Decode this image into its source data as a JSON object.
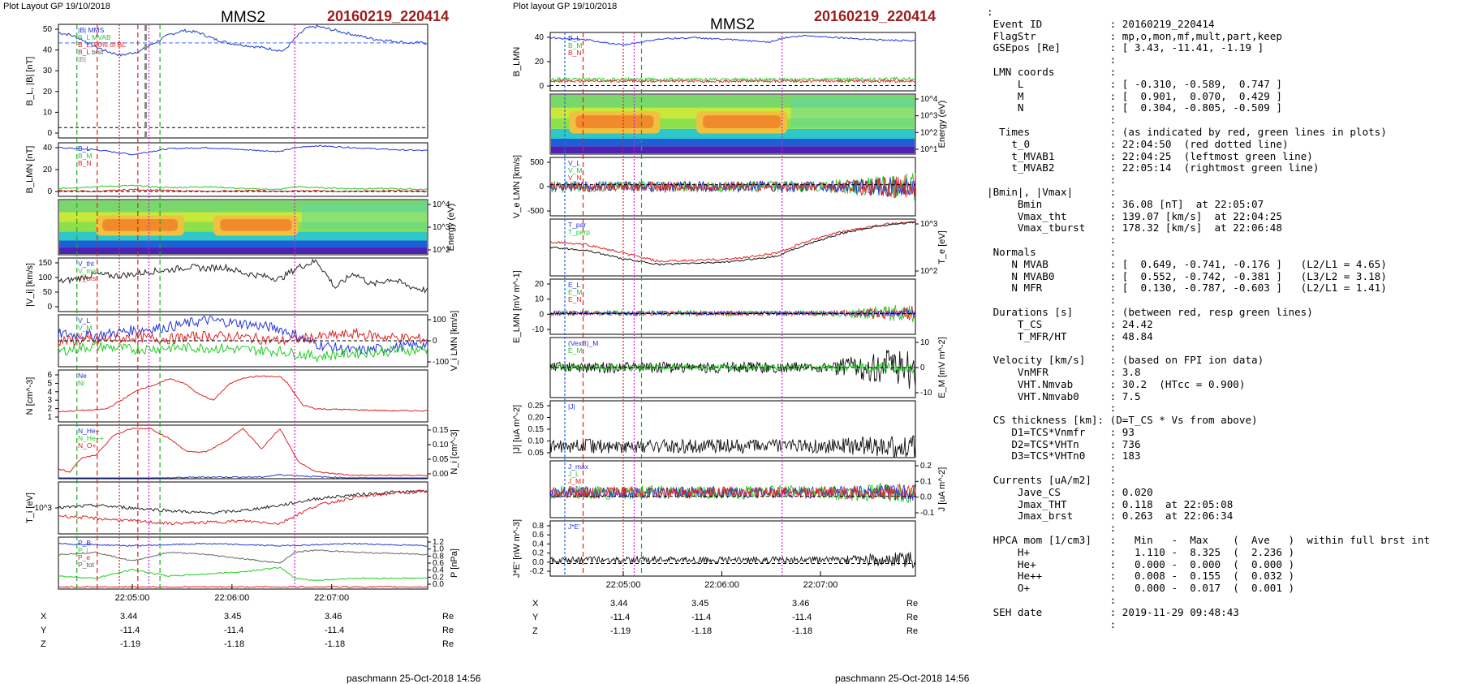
{
  "left_figure": {
    "header": "Plot Layout GP 19/10/2018",
    "title": "MMS2",
    "event": "20160219_220414",
    "footer": "paschmann 25-Oct-2018 14:56",
    "time_ticks": [
      "22:05:00",
      "22:06:00",
      "22:07:00"
    ],
    "pos_rows": [
      {
        "label": "X",
        "vals": [
          "3.44",
          "3.45",
          "3.46"
        ],
        "unit": "Re"
      },
      {
        "label": "Y",
        "vals": [
          "-11.4",
          "-11.4",
          "-11.4"
        ],
        "unit": "Re"
      },
      {
        "label": "Z",
        "vals": [
          "-1.19",
          "-1.18",
          "-1.18"
        ],
        "unit": "Re"
      }
    ]
  },
  "right_figure": {
    "header": "Plot layout GP 19/10/2018",
    "title": "MMS2",
    "event": "20160219_220414",
    "footer": "paschmann 25-Oct-2018 14:56",
    "time_ticks": [
      "22:05:00",
      "22:06:00",
      "22:07:00"
    ],
    "pos_rows": [
      {
        "label": "X",
        "vals": [
          "3.44",
          "3.45",
          "3.46"
        ],
        "unit": "Re"
      },
      {
        "label": "Y",
        "vals": [
          "-11.4",
          "-11.4",
          "-11.4"
        ],
        "unit": "Re"
      },
      {
        "label": "Z",
        "vals": [
          "-1.19",
          "-1.18",
          "-1.18"
        ],
        "unit": "Re"
      }
    ]
  },
  "info_lines": [
    ":",
    " Event ID           : 20160219_220414",
    " FlagStr            : mp,o,mon,mf,mult,part,keep",
    " GSEpos [Re]        : [ 3.43, -11.41, -1.19 ]",
    "                    :",
    " LMN coords         :",
    "     L              : [ -0.310, -0.589,  0.747 ]",
    "     M              : [  0.901,  0.070,  0.429 ]",
    "     N              : [  0.304, -0.805, -0.509 ]",
    "                    :",
    "  Times             : (as indicated by red, green lines in plots)",
    "    t_0             : 22:04:50  (red dotted line)",
    "    t_MVAB1         : 22:04:25  (leftmost green line)",
    "    t_MVAB2         : 22:05:14  (rightmost green line)",
    "                    :",
    "|Bmin|, |Vmax|      :",
    "     Bmin           : 36.08 [nT]  at 22:05:07",
    "     Vmax_tht       : 139.07 [km/s]  at 22:04:25",
    "     Vmax_tburst    : 178.32 [km/s]  at 22:06:48",
    "                    :",
    " Normals            :",
    "    N MVAB          : [  0.649, -0.741, -0.176 ]   (L2/L1 = 4.65)",
    "    N MVAB0         : [  0.552, -0.742, -0.381 ]   (L3/L2 = 3.18)",
    "    N MFR           : [  0.130, -0.787, -0.603 ]   (L2/L1 = 1.41)",
    "                    :",
    " Durations [s]      : (between red, resp green lines)",
    "     T_CS           : 24.42",
    "     T_MFR/HT       : 48.84",
    "                    :",
    " Velocity [km/s]    : (based on FPI ion data)",
    "     VnMFR          : 3.8",
    "     VHT.Nmvab      : 30.2  (HTcc = 0.900)",
    "     VHT.Nmvab0     : 7.5",
    "                    :",
    " CS thickness [km]: (D=T_CS * Vs from above)",
    "    D1=TCS*Vnmfr    : 93",
    "    D2=TCS*VHTn     : 736",
    "    D3=TCS*VHTn0    : 183",
    "                    :",
    " Currents [uA/m2]   :",
    "     Jave_CS        : 0.020",
    "     Jmax_THT       : 0.118  at 22:05:08",
    "     Jmax_brst      : 0.263  at 22:06:34",
    "                    :",
    " HPCA mom [1/cm3]   :   Min   -  Max    (  Ave   )  within full brst int",
    "     H+             :   1.110 -  8.325  (  2.236 )",
    "     He+            :   0.000 -  0.000  (  0.000 )",
    "     He++           :   0.008 -  0.155  (  0.032 )",
    "     O+             :   0.000 -  0.017  (  0.001 )",
    "                    :",
    " SEH date           : 2019-11-29 09:48:43",
    "                    :"
  ],
  "chart_data": [
    {
      "type": "line",
      "title": "MMS2",
      "panel": "B",
      "ylabel": "B_L, |B| [nT]",
      "ylim": [
        -5,
        50
      ],
      "yticks": [
        "0",
        "10",
        "20",
        "30",
        "40",
        "50"
      ],
      "legend": [
        "|B| MMS",
        "B_L MVAB",
        "B_L; 50% of BL",
        "B_L brst",
        "|B|"
      ],
      "series": [
        {
          "name": "|B|",
          "color": "#1a3cc8",
          "x": [
            0,
            0.03,
            0.06,
            0.09,
            0.13,
            0.17,
            0.22,
            0.26,
            0.3,
            0.34,
            0.38,
            0.42,
            0.46,
            0.5,
            0.54,
            0.58,
            0.61,
            0.64,
            0.67,
            0.7,
            0.75,
            0.8,
            0.85,
            0.9,
            0.95,
            1.0
          ],
          "y": [
            46,
            45,
            43,
            40,
            37,
            35,
            37,
            41,
            45,
            47,
            46,
            43,
            41,
            40,
            39,
            38,
            37,
            43,
            48,
            49,
            47,
            45,
            43,
            42,
            41,
            41
          ]
        }
      ],
      "ref_lines": [
        {
          "y": 41,
          "color": "#4466ff",
          "dashed": true
        }
      ]
    },
    {
      "type": "line",
      "panel": "B_LMN",
      "ylabel": "B_LMN [nT]",
      "ylim": [
        -5,
        50
      ],
      "yticks": [
        "0",
        "20",
        "40"
      ],
      "legend": [
        "B_L",
        "B_M",
        "B_N"
      ],
      "series": [
        {
          "name": "B_L",
          "color": "#2233dd",
          "x": [
            0,
            0.1,
            0.2,
            0.3,
            0.4,
            0.5,
            0.6,
            0.64,
            0.7,
            0.8,
            0.9,
            1.0
          ],
          "y": [
            45,
            43,
            38,
            44,
            45,
            43,
            41,
            45,
            47,
            45,
            43,
            42
          ]
        },
        {
          "name": "B_M",
          "color": "#22cc22",
          "x": [
            0,
            0.1,
            0.2,
            0.3,
            0.4,
            0.5,
            0.6,
            0.64,
            0.7,
            0.8,
            0.9,
            1.0
          ],
          "y": [
            3,
            5,
            6,
            4,
            5,
            3,
            2,
            5,
            4,
            3,
            3,
            2
          ]
        },
        {
          "name": "B_N",
          "color": "#dd2222",
          "x": [
            0,
            0.1,
            0.2,
            0.3,
            0.4,
            0.5,
            0.6,
            0.7,
            0.8,
            0.9,
            1.0
          ],
          "y": [
            1,
            0,
            2,
            1,
            0,
            1,
            0,
            1,
            0,
            1,
            0
          ]
        }
      ]
    },
    {
      "type": "heatmap",
      "panel": "ion energy spectrogram",
      "ylabel": "Energy (eV)",
      "yticks": [
        "10^2",
        "10^3",
        "10^4"
      ]
    },
    {
      "type": "line",
      "panel": "|V_i|",
      "ylabel": "|V_i| [km/s]",
      "ylim": [
        0,
        180
      ],
      "yticks": [
        "0",
        "50",
        "100",
        "150"
      ],
      "legend": [
        "V_tht",
        "V_max",
        "V_brst"
      ],
      "series": [
        {
          "name": "|V_i|",
          "color": "#222222",
          "x": [
            0,
            0.05,
            0.1,
            0.15,
            0.2,
            0.25,
            0.3,
            0.35,
            0.4,
            0.45,
            0.5,
            0.55,
            0.6,
            0.65,
            0.7,
            0.75,
            0.8,
            0.85,
            0.9,
            0.95,
            1.0
          ],
          "y": [
            100,
            110,
            125,
            120,
            125,
            135,
            140,
            150,
            145,
            150,
            130,
            120,
            110,
            150,
            170,
            80,
            130,
            90,
            110,
            85,
            70
          ]
        }
      ]
    },
    {
      "type": "line",
      "panel": "V_i LMN",
      "ylabel": "V_i LMN [km/s]",
      "ylim": [
        -150,
        150
      ],
      "yticks": [
        "-100",
        "0",
        "100"
      ],
      "legend": [
        "V_L",
        "V_M",
        "V_N"
      ],
      "series": [
        {
          "name": "V_L",
          "color": "#2233dd",
          "x": [
            0,
            0.1,
            0.2,
            0.3,
            0.4,
            0.5,
            0.6,
            0.7,
            0.8,
            0.9,
            1.0
          ],
          "y": [
            40,
            30,
            60,
            80,
            120,
            100,
            70,
            -20,
            -60,
            -40,
            -20
          ]
        },
        {
          "name": "V_M",
          "color": "#22cc22",
          "x": [
            0,
            0.1,
            0.2,
            0.3,
            0.4,
            0.5,
            0.6,
            0.7,
            0.8,
            0.9,
            1.0
          ],
          "y": [
            -60,
            -30,
            -50,
            -40,
            -40,
            -50,
            -60,
            -90,
            -70,
            -60,
            -50
          ]
        },
        {
          "name": "V_N",
          "color": "#dd2222",
          "x": [
            0,
            0.1,
            0.2,
            0.3,
            0.4,
            0.5,
            0.6,
            0.7,
            0.8,
            0.9,
            1.0
          ],
          "y": [
            0,
            0,
            20,
            10,
            30,
            20,
            0,
            20,
            40,
            20,
            10
          ]
        }
      ]
    },
    {
      "type": "line",
      "panel": "N",
      "ylabel": "N [cm^-3]",
      "ylim": [
        0,
        6
      ],
      "yticks": [
        "1",
        "2",
        "3",
        "4",
        "5",
        "6"
      ],
      "legend": [
        "Ne",
        "Ni"
      ],
      "series": [
        {
          "name": "Ne",
          "color": "#dd2222",
          "x": [
            0,
            0.05,
            0.1,
            0.13,
            0.17,
            0.22,
            0.27,
            0.3,
            0.34,
            0.38,
            0.42,
            0.46,
            0.5,
            0.55,
            0.6,
            0.62,
            0.66,
            0.7,
            0.8,
            0.9,
            1.0
          ],
          "y": [
            1.2,
            1.3,
            1.4,
            1.5,
            2.5,
            3.8,
            4.4,
            5.0,
            4.5,
            3.2,
            2.5,
            4.3,
            5.1,
            5.3,
            5.2,
            4.5,
            2.0,
            1.5,
            1.4,
            1.3,
            1.3
          ]
        }
      ]
    },
    {
      "type": "line",
      "panel": "N_i species",
      "ylabel": "N_i [cm^-3]",
      "ylim": [
        0,
        0.16
      ],
      "yticks": [
        "0.00",
        "0.05",
        "0.10",
        "0.15"
      ],
      "legend": [
        "N_He+",
        "N_He++",
        "N_O+"
      ],
      "series": [
        {
          "name": "He++",
          "color": "#dd2222",
          "x": [
            0,
            0.03,
            0.06,
            0.1,
            0.15,
            0.2,
            0.25,
            0.3,
            0.35,
            0.4,
            0.45,
            0.5,
            0.55,
            0.6,
            0.65,
            0.7,
            0.8,
            0.9,
            1.0
          ],
          "y": [
            0.03,
            0.02,
            0.06,
            0.07,
            0.13,
            0.15,
            0.15,
            0.12,
            0.08,
            0.08,
            0.11,
            0.15,
            0.09,
            0.15,
            0.05,
            0.02,
            0.01,
            0.01,
            0.01
          ]
        },
        {
          "name": "O+",
          "color": "#2233dd",
          "x": [
            0,
            0.2,
            0.4,
            0.55,
            0.6,
            0.7,
            0.8,
            1.0
          ],
          "y": [
            0.0,
            0.0,
            0.005,
            0.005,
            0.012,
            0.006,
            0.002,
            0.0
          ]
        }
      ]
    },
    {
      "type": "line",
      "panel": "T_i",
      "ylabel": "T_i [eV]",
      "yticks": [
        "10^3"
      ],
      "series": [
        {
          "name": "T_par",
          "color": "#222222",
          "x": [
            0,
            0.1,
            0.2,
            0.3,
            0.4,
            0.5,
            0.6,
            0.64,
            0.7,
            0.8,
            0.9,
            1.0
          ],
          "y": [
            0.5,
            0.55,
            0.5,
            0.45,
            0.4,
            0.45,
            0.55,
            0.6,
            0.68,
            0.75,
            0.8,
            0.82
          ]
        },
        {
          "name": "T_perp",
          "color": "#dd2222",
          "x": [
            0,
            0.1,
            0.2,
            0.3,
            0.4,
            0.5,
            0.6,
            0.64,
            0.7,
            0.8,
            0.9,
            1.0
          ],
          "y": [
            0.35,
            0.3,
            0.25,
            0.2,
            0.22,
            0.25,
            0.2,
            0.35,
            0.55,
            0.7,
            0.78,
            0.82
          ]
        }
      ]
    },
    {
      "type": "line",
      "panel": "P",
      "ylabel": "P [nPa]",
      "ylim": [
        0,
        1.2
      ],
      "yticks": [
        "0.0",
        "0.2",
        "0.4",
        "0.6",
        "0.8",
        "1.0",
        "1.2"
      ],
      "legend": [
        "P_B",
        "P_i",
        "P_e",
        "P_tot"
      ],
      "series": [
        {
          "name": "P_tot",
          "color": "#2233dd",
          "x": [
            0,
            0.2,
            0.4,
            0.6,
            0.8,
            1.0
          ],
          "y": [
            1.05,
            1.0,
            1.05,
            1.0,
            1.05,
            1.0
          ]
        },
        {
          "name": "P_B",
          "color": "#666666",
          "x": [
            0,
            0.1,
            0.2,
            0.3,
            0.4,
            0.5,
            0.6,
            0.64,
            0.7,
            0.8,
            1.0
          ],
          "y": [
            0.8,
            0.85,
            0.65,
            0.85,
            0.8,
            0.7,
            0.6,
            0.85,
            0.9,
            0.85,
            0.8
          ]
        },
        {
          "name": "P_i",
          "color": "#22cc22",
          "x": [
            0,
            0.1,
            0.2,
            0.3,
            0.4,
            0.5,
            0.6,
            0.64,
            0.7,
            0.8,
            1.0
          ],
          "y": [
            0.3,
            0.25,
            0.45,
            0.3,
            0.35,
            0.4,
            0.5,
            0.25,
            0.2,
            0.25,
            0.25
          ]
        },
        {
          "name": "P_e",
          "color": "#dd2222",
          "x": [
            0,
            0.2,
            0.4,
            0.6,
            0.8,
            1.0
          ],
          "y": [
            0.05,
            0.05,
            0.05,
            0.05,
            0.05,
            0.05
          ]
        }
      ]
    },
    {
      "type": "line",
      "panel": "right B_LMN",
      "ylabel": "B_LMN",
      "ylim": [
        -5,
        50
      ],
      "yticks": [
        "0",
        "20",
        "40"
      ],
      "legend": [
        "B_L",
        "B_M",
        "B_N"
      ],
      "series": [
        {
          "name": "B_L",
          "color": "#2233dd",
          "x": [
            0,
            0.1,
            0.2,
            0.3,
            0.4,
            0.5,
            0.6,
            0.64,
            0.7,
            0.8,
            0.9,
            1.0
          ],
          "y": [
            45,
            43,
            38,
            44,
            45,
            43,
            41,
            45,
            47,
            45,
            43,
            42
          ]
        }
      ]
    },
    {
      "type": "heatmap",
      "panel": "electron energy spectrogram",
      "ylabel": "Energy (eV)",
      "yticks": [
        "10^1",
        "10^2",
        "10^3",
        "10^4"
      ]
    },
    {
      "type": "line",
      "panel": "V_e LMN",
      "ylabel": "V_e LMN [km/s]",
      "ylim": [
        -800,
        700
      ],
      "yticks": [
        "-500",
        "0",
        "500"
      ],
      "legend": [
        "V_L",
        "V_M",
        "V_N"
      ]
    },
    {
      "type": "line",
      "panel": "T_e",
      "ylabel": "T_e [eV]",
      "yticks": [
        "10^2",
        "10^3"
      ],
      "legend": [
        "T_par",
        "T_perp"
      ]
    },
    {
      "type": "line",
      "panel": "E_LMN",
      "ylabel": "E_LMN [mV m^-1]",
      "ylim": [
        -15,
        25
      ],
      "yticks": [
        "-10",
        "0",
        "10",
        "20"
      ],
      "legend": [
        "E_L",
        "E_M",
        "E_N"
      ]
    },
    {
      "type": "line",
      "panel": "E_M",
      "ylabel": "E_M [mV m^-2]",
      "ylim": [
        -15,
        15
      ],
      "yticks": [
        "-10",
        "0",
        "10"
      ],
      "legend": [
        "(VexB)_M",
        "E_M"
      ]
    },
    {
      "type": "line",
      "panel": "|J|",
      "ylabel": "|J| [uA m^-2]",
      "ylim": [
        0,
        0.26
      ],
      "yticks": [
        "0.05",
        "0.10",
        "0.15",
        "0.20",
        "0.25"
      ],
      "legend": [
        "|J|"
      ]
    },
    {
      "type": "line",
      "panel": "J",
      "ylabel": "J [uA m^-2]",
      "ylim": [
        -0.15,
        0.25
      ],
      "yticks": [
        "-0.1",
        "0.0",
        "0.1",
        "0.2"
      ],
      "legend": [
        "J_max",
        "J_L",
        "J_M",
        "J_N"
      ]
    },
    {
      "type": "line",
      "panel": "J*E'",
      "ylabel": "J*E' [nW m^-3]",
      "ylim": [
        -0.25,
        0.85
      ],
      "yticks": [
        "-0.2",
        "0.0",
        "0.2",
        "0.4",
        "0.6",
        "0.8"
      ],
      "legend": [
        "J*E'"
      ]
    }
  ]
}
